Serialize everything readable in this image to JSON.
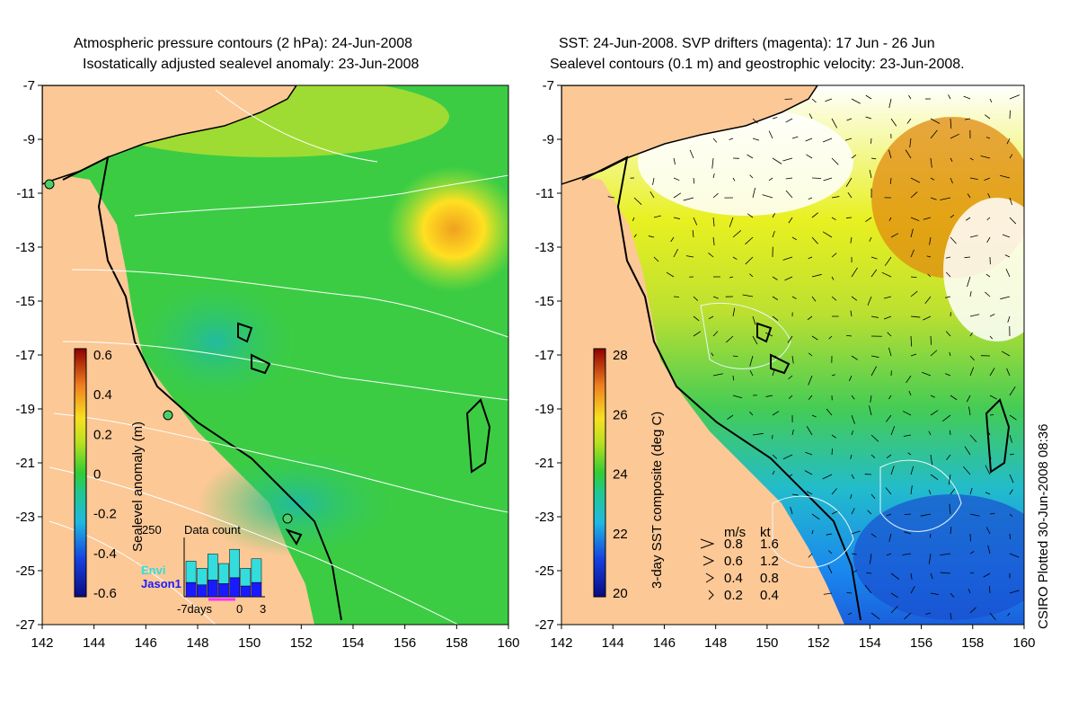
{
  "left_panel": {
    "title_line1": "Atmospheric pressure contours (2 hPa): 24-Jun-2008",
    "title_line2": "Isostatically adjusted sealevel anomaly: 23-Jun-2008",
    "colorbar": {
      "label": "Sealevel anomaly (m)",
      "ticks": [
        "0.6",
        "0.4",
        "0.2",
        "0",
        "-0.2",
        "-0.4",
        "-0.6"
      ],
      "range": [
        -0.6,
        0.6
      ]
    },
    "inset": {
      "title": "Data count",
      "y_max_label": "250",
      "x_labels": [
        "-7days",
        "0",
        "3"
      ],
      "series": [
        "Envi",
        "Jason1"
      ],
      "series_colors": [
        "#33dddd",
        "#1a1aff"
      ],
      "counts": [
        150,
        120,
        180,
        140,
        200,
        120,
        160
      ],
      "envi_counts": [
        60,
        50,
        70,
        55,
        80,
        45,
        60
      ]
    }
  },
  "right_panel": {
    "title_line1": "SST: 24-Jun-2008. SVP drifters (magenta): 17 Jun - 26 Jun",
    "title_line2": "Sealevel contours (0.1 m) and geostrophic velocity: 23-Jun-2008.",
    "colorbar": {
      "label": "3-day SST composite (deg C)",
      "ticks": [
        "28",
        "26",
        "24",
        "22",
        "20"
      ],
      "range": [
        20,
        29
      ]
    },
    "velocity_legend": {
      "header_ms": "m/s",
      "header_kt": "kt",
      "rows": [
        {
          "ms": "0.8",
          "kt": "1.6"
        },
        {
          "ms": "0.6",
          "kt": "1.2"
        },
        {
          "ms": "0.4",
          "kt": "0.8"
        },
        {
          "ms": "0.2",
          "kt": "0.4"
        }
      ]
    }
  },
  "axes": {
    "x_ticks": [
      "142",
      "144",
      "146",
      "148",
      "150",
      "152",
      "154",
      "156",
      "158",
      "160"
    ],
    "y_ticks": [
      "-7",
      "-9",
      "-11",
      "-13",
      "-15",
      "-17",
      "-19",
      "-21",
      "-23",
      "-25",
      "-27"
    ],
    "lon_range": [
      142,
      160
    ],
    "lat_range": [
      -27,
      -7
    ]
  },
  "credit": "CSIRO Plotted 30-Jun-2008 08:36",
  "colors": {
    "land": "#fcc896",
    "ocean_green": "#33cc44",
    "anomaly_high": "#f0a020",
    "anomaly_low": "#22bbaa",
    "sst_warm": "#e08a10",
    "sst_cool": "#1188ee"
  }
}
